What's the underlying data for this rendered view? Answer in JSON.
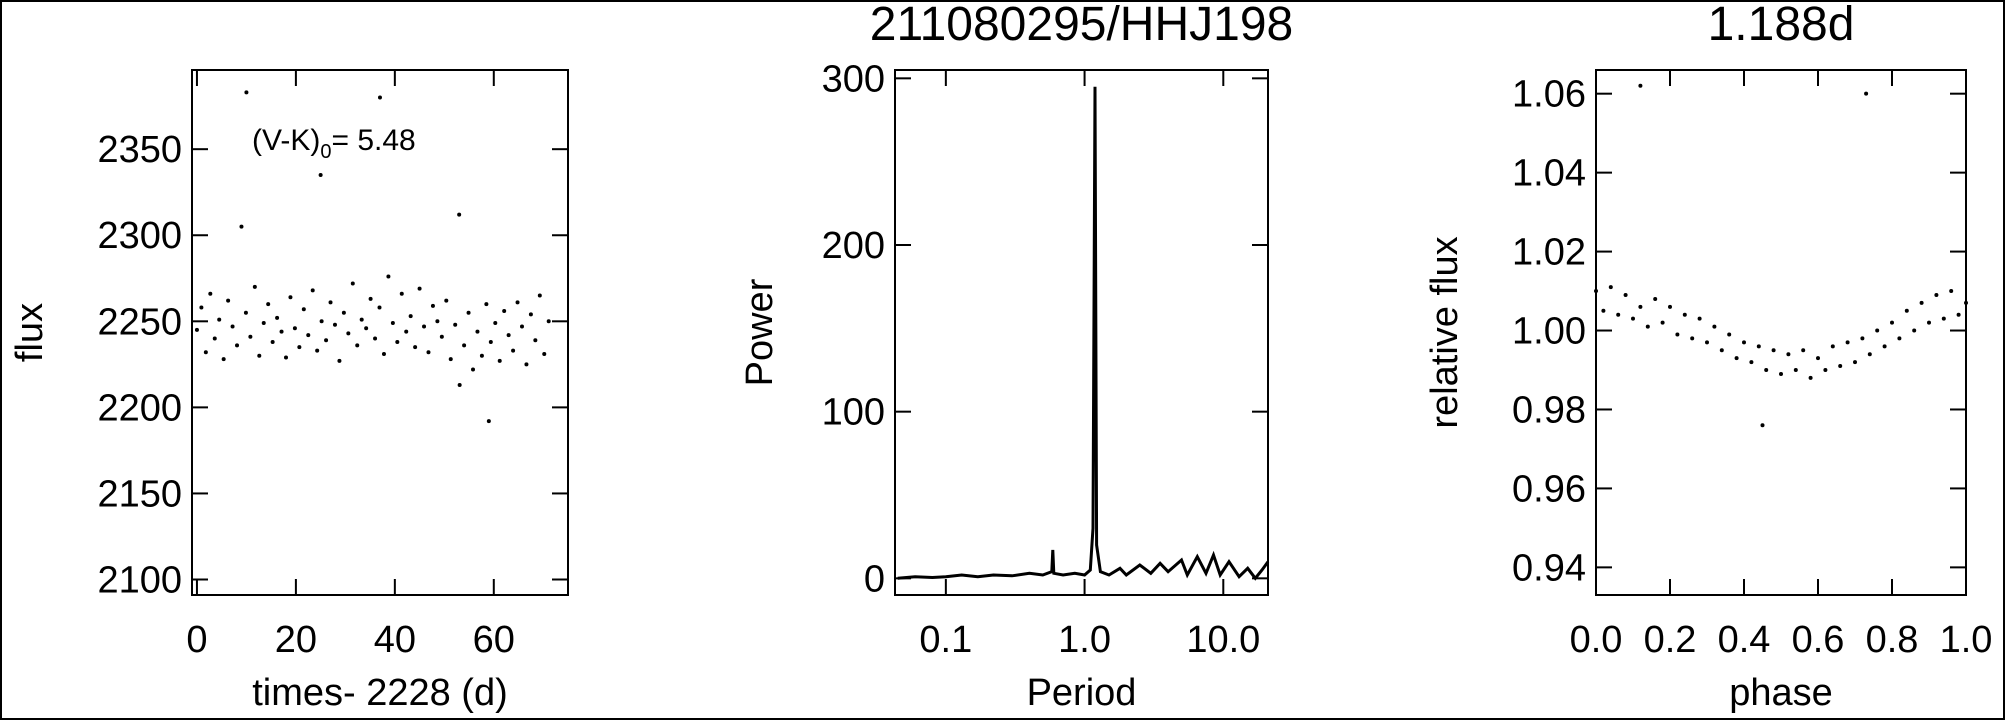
{
  "chart_data": [
    {
      "type": "scatter",
      "xlabel": "times- 2228 (d)",
      "ylabel": "flux",
      "annotation": {
        "text": "(V-K)",
        "subscript": "0",
        "suffix": "= 5.48"
      },
      "color": "#000000",
      "xlim": [
        -1,
        75
      ],
      "xticks": [
        0,
        20,
        40,
        60
      ],
      "ylim": [
        2091,
        2396
      ],
      "yticks": [
        2100,
        2150,
        2200,
        2250,
        2300,
        2350
      ],
      "x": [
        0,
        0.9,
        1.8,
        2.7,
        3.6,
        4.5,
        5.4,
        6.3,
        7.2,
        8.1,
        9,
        9.9,
        10.8,
        11.7,
        12.6,
        13.5,
        14.4,
        15.3,
        16.2,
        17.1,
        18,
        18.9,
        19.8,
        20.7,
        21.6,
        22.5,
        23.4,
        24.3,
        25.2,
        26.1,
        27,
        27.9,
        28.8,
        29.7,
        30.6,
        31.5,
        32.4,
        33.3,
        34.2,
        35.1,
        36,
        36.9,
        37.8,
        38.7,
        39.6,
        40.5,
        41.4,
        42.3,
        43.2,
        44.1,
        45,
        45.9,
        46.8,
        47.7,
        48.6,
        49.5,
        50.4,
        51.3,
        52.2,
        53.1,
        54,
        54.9,
        55.8,
        56.7,
        57.6,
        58.5,
        59.4,
        60.3,
        61.2,
        62.1,
        63,
        63.9,
        64.8,
        65.7,
        66.6,
        67.5,
        68.4,
        69.3,
        70.2,
        71.1,
        10,
        25,
        37,
        53,
        59
      ],
      "values": [
        2245,
        2258,
        2232,
        2266,
        2240,
        2251,
        2228,
        2262,
        2247,
        2236,
        2305,
        2255,
        2241,
        2270,
        2230,
        2249,
        2260,
        2238,
        2252,
        2244,
        2229,
        2264,
        2246,
        2235,
        2257,
        2242,
        2268,
        2233,
        2250,
        2239,
        2261,
        2248,
        2227,
        2255,
        2243,
        2272,
        2236,
        2251,
        2246,
        2263,
        2240,
        2258,
        2231,
        2276,
        2249,
        2238,
        2266,
        2244,
        2253,
        2235,
        2269,
        2247,
        2232,
        2259,
        2250,
        2241,
        2262,
        2228,
        2248,
        2213,
        2236,
        2255,
        2222,
        2244,
        2230,
        2260,
        2238,
        2249,
        2227,
        2256,
        2242,
        2233,
        2261,
        2247,
        2225,
        2254,
        2239,
        2265,
        2231,
        2250,
        2383,
        2335,
        2380,
        2312,
        2192
      ]
    },
    {
      "type": "line",
      "title": "211080295/HHJ198",
      "xlabel": "Period",
      "ylabel": "Power",
      "color": "#000000",
      "xscale": "log",
      "xlim": [
        0.043,
        21
      ],
      "xticks": [
        0.1,
        {
          "value": 1,
          "label": "1.0"
        },
        {
          "value": 10,
          "label": "10.0"
        }
      ],
      "ylim": [
        -10,
        305
      ],
      "yticks": [
        0,
        100,
        200,
        300
      ],
      "x": [
        0.045,
        0.06,
        0.08,
        0.1,
        0.13,
        0.17,
        0.22,
        0.3,
        0.4,
        0.5,
        0.58,
        0.59,
        0.6,
        0.7,
        0.85,
        1.0,
        1.1,
        1.15,
        1.188,
        1.22,
        1.3,
        1.5,
        1.8,
        2.0,
        2.5,
        3.0,
        3.5,
        4.0,
        5.0,
        5.5,
        6.5,
        7.5,
        8.5,
        9.5,
        11,
        13,
        15,
        17,
        19,
        21
      ],
      "values": [
        0,
        1,
        0.5,
        1,
        2,
        1,
        2,
        1.5,
        3,
        2,
        4,
        17,
        3,
        2,
        3,
        2,
        5,
        30,
        295,
        20,
        4,
        2,
        6,
        2,
        8,
        3,
        9,
        4,
        11,
        2,
        13,
        3,
        14,
        2,
        10,
        1,
        6,
        0,
        5,
        10
      ]
    },
    {
      "type": "scatter",
      "title": "1.188d",
      "xlabel": "phase",
      "ylabel": "relative flux",
      "color": "#000000",
      "xlim": [
        0,
        1
      ],
      "xticks": [
        {
          "value": 0,
          "label": "0.0"
        },
        0.2,
        0.4,
        0.6,
        0.8,
        {
          "value": 1,
          "label": "1.0"
        }
      ],
      "ylim": [
        0.933,
        1.066
      ],
      "yticks": [
        0.94,
        0.96,
        0.98,
        {
          "value": 1,
          "label": "1.00"
        },
        1.02,
        1.04,
        1.06
      ],
      "x": [
        0,
        0.02,
        0.04,
        0.06,
        0.08,
        0.1,
        0.12,
        0.14,
        0.16,
        0.18,
        0.2,
        0.22,
        0.24,
        0.26,
        0.28,
        0.3,
        0.32,
        0.34,
        0.36,
        0.38,
        0.4,
        0.42,
        0.44,
        0.46,
        0.48,
        0.5,
        0.52,
        0.54,
        0.56,
        0.58,
        0.6,
        0.62,
        0.64,
        0.66,
        0.68,
        0.7,
        0.72,
        0.74,
        0.76,
        0.78,
        0.8,
        0.82,
        0.84,
        0.86,
        0.88,
        0.9,
        0.92,
        0.94,
        0.96,
        0.98,
        1,
        0.12,
        0.45,
        0.73
      ],
      "values": [
        1.01,
        1.005,
        1.011,
        1.004,
        1.009,
        1.003,
        1.006,
        1.001,
        1.008,
        1.002,
        1.006,
        0.999,
        1.004,
        0.998,
        1.003,
        0.997,
        1.001,
        0.995,
        0.999,
        0.993,
        0.997,
        0.992,
        0.996,
        0.99,
        0.995,
        0.989,
        0.994,
        0.99,
        0.995,
        0.988,
        0.993,
        0.99,
        0.996,
        0.991,
        0.997,
        0.992,
        0.998,
        0.994,
        1.0,
        0.996,
        1.002,
        0.998,
        1.005,
        1.0,
        1.007,
        1.002,
        1.009,
        1.003,
        1.01,
        1.004,
        1.007,
        1.062,
        0.976,
        1.06
      ]
    }
  ]
}
